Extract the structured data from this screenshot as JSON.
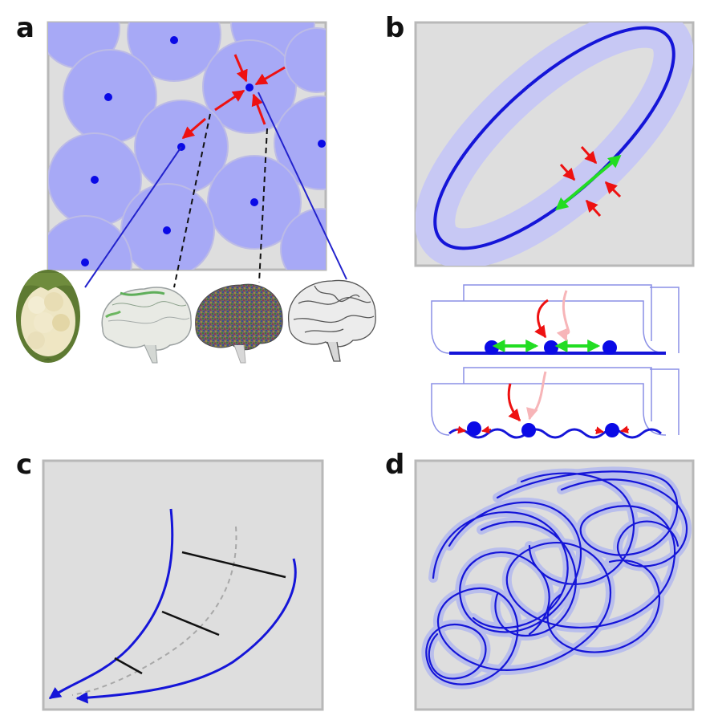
{
  "panels": {
    "a": {
      "label": "a"
    },
    "b": {
      "label": "b"
    },
    "c": {
      "label": "c"
    },
    "d": {
      "label": "d"
    }
  },
  "colors": {
    "panel_bg": "#dedede",
    "panel_border": "#b8b8b8",
    "disk_fill": "#a7a9f6",
    "disk_edge": "#bcbbe6",
    "dot": "#0a0ae6",
    "curve": "#1515d8",
    "band": "#c7c8f4",
    "arrow_red": "#ee1111",
    "arrow_pink": "#f7b5b8",
    "arrow_green": "#22dd22",
    "leader_line": "#2222cc",
    "dashed_line": "#111111"
  },
  "icons": [
    "cauliflower-image",
    "brain-mesh-image",
    "brain-noise-image",
    "brain-outline-image"
  ]
}
